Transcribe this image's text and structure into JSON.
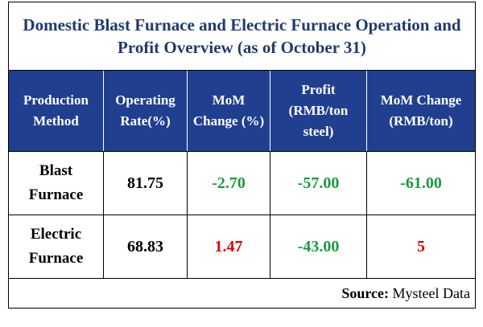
{
  "title": "Domestic Blast Furnace and Electric Furnace Operation and Profit Overview (as of October 31)",
  "table": {
    "header": [
      "Production Method",
      "Operating Rate(%)",
      "MoM Change (%)",
      "Profit (RMB/ton steel)",
      "MoM Change (RMB/ton)"
    ],
    "rows": [
      [
        "Blast Furnace",
        "81.75",
        "-2.70",
        "-57.00",
        "-61.00"
      ],
      [
        "Electric Furnace",
        "68.83",
        "1.47",
        "-43.00",
        "5"
      ]
    ]
  },
  "source": {
    "label": "Source:",
    "text": "Mysteel Data"
  }
}
